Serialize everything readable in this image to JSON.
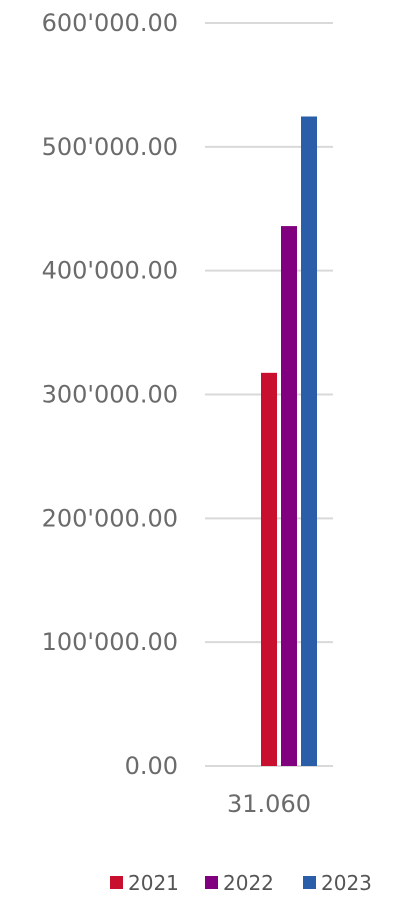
{
  "chart_data": {
    "type": "bar",
    "title": "",
    "xlabel": "",
    "ylabel": "",
    "categories": [
      "31.060"
    ],
    "series": [
      {
        "name": "2021",
        "values": [
          317500
        ],
        "color": "#c8102e"
      },
      {
        "name": "2022",
        "values": [
          436000
        ],
        "color": "#800080"
      },
      {
        "name": "2023",
        "values": [
          524500
        ],
        "color": "#2a5ea8"
      }
    ],
    "ylim": [
      0,
      600000
    ],
    "yticks": [
      0,
      100000,
      200000,
      300000,
      400000,
      500000,
      600000
    ],
    "ytick_labels": [
      "0.00",
      "100'000.00",
      "200'000.00",
      "300'000.00",
      "400'000.00",
      "500'000.00",
      "600'000.00"
    ],
    "grid": true,
    "legend": "bottom"
  }
}
